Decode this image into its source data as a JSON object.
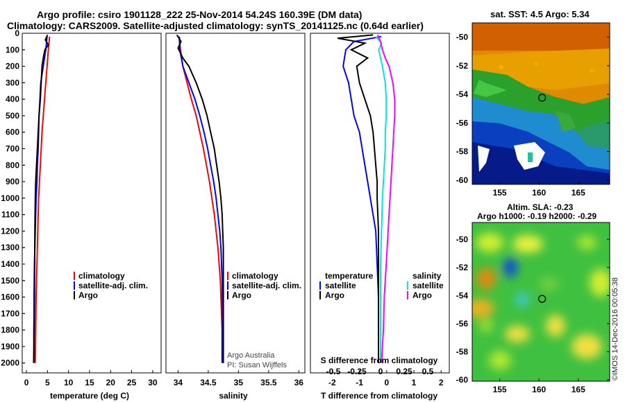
{
  "title_line1": "Argo profile: csiro 1901128_222 25-Nov-2014 54.24S 160.39E (DM data)",
  "title_line2": "Climatology: CARS2009. Satellite-adjusted climatology: synTS_20141125.nc (0.64d earlier)",
  "map_sst_title": "sat. SST: 4.5 Argo: 5.34",
  "map_sla_title1": "Altim. SLA: -0.23",
  "map_sla_title2": "Argo h1000: -0.19 h2000: -0.29",
  "credit": "Argo Australia",
  "pi": "PI: Susan Wijffels",
  "watermark": "©IMOS 14-Dec-2016 00:05:38",
  "colors": {
    "climatology": "#ff0000",
    "satellite": "#0000ff",
    "argo": "#000000",
    "s_satellite": "#00e5e5",
    "s_argo": "#ff00ff"
  },
  "chart_data": [
    {
      "type": "line",
      "xlabel": "temperature (deg C)",
      "ylabel": "",
      "xlim": [
        -1,
        32
      ],
      "ylim": [
        2060,
        0
      ],
      "x_ticks": [
        0,
        5,
        10,
        15,
        20,
        25,
        30
      ],
      "y_ticks": [
        0,
        100,
        200,
        300,
        400,
        500,
        600,
        700,
        800,
        900,
        1000,
        1100,
        1200,
        1300,
        1400,
        1500,
        1600,
        1700,
        1800,
        1900,
        2000
      ],
      "legend": [
        "climatology",
        "satellite-adj. clim.",
        "Argo"
      ],
      "series": [
        {
          "name": "climatology",
          "x": [
            5.5,
            5.2,
            4.9,
            4.6,
            4.3,
            4.0,
            3.7,
            3.5,
            3.3,
            3.1,
            2.9,
            2.7,
            2.6,
            2.5,
            2.4,
            2.3,
            2.25,
            2.2,
            2.15,
            2.1
          ],
          "y": [
            20,
            100,
            200,
            300,
            400,
            500,
            600,
            700,
            800,
            900,
            1000,
            1200,
            1300,
            1400,
            1500,
            1600,
            1700,
            1800,
            1900,
            2000
          ]
        },
        {
          "name": "satellite-adj. clim.",
          "x": [
            4.9,
            4.6,
            4.0,
            3.4,
            3.2,
            3.0,
            2.9,
            2.8,
            2.6,
            2.5,
            2.3,
            2.1,
            2.0,
            1.9,
            1.85,
            1.8,
            1.8,
            1.75,
            1.75,
            1.7
          ],
          "y": [
            20,
            100,
            200,
            300,
            400,
            500,
            600,
            700,
            800,
            900,
            1000,
            1200,
            1300,
            1400,
            1500,
            1600,
            1700,
            1800,
            1900,
            2000
          ]
        },
        {
          "name": "Argo",
          "x": [
            5.0,
            4.5,
            5.2,
            4.4,
            4.0,
            3.7,
            3.5,
            3.3,
            3.0,
            2.8,
            2.6,
            2.4,
            2.2,
            2.1,
            2.0,
            1.95,
            1.9,
            1.85,
            1.8,
            1.8,
            1.75
          ],
          "y": [
            10,
            40,
            70,
            100,
            150,
            200,
            300,
            400,
            500,
            600,
            700,
            800,
            900,
            1000,
            1200,
            1400,
            1600,
            1800,
            1900,
            1950,
            2000
          ]
        }
      ]
    },
    {
      "type": "line",
      "xlabel": "salinity",
      "ylabel": "",
      "xlim": [
        33.8,
        36.1
      ],
      "ylim": [
        2060,
        0
      ],
      "x_ticks": [
        34,
        34.5,
        35,
        35.5,
        36
      ],
      "x_tick_labels": [
        "34",
        "34.5",
        "35",
        "35.5",
        "36"
      ],
      "legend": [
        "climatology",
        "satellite-adj. clim.",
        "Argo"
      ],
      "series": [
        {
          "name": "climatology",
          "x": [
            34.02,
            34.04,
            34.08,
            34.15,
            34.22,
            34.3,
            34.36,
            34.42,
            34.47,
            34.52,
            34.56,
            34.6,
            34.63,
            34.66,
            34.68,
            34.7,
            34.71,
            34.72,
            34.73,
            34.73
          ],
          "y": [
            20,
            100,
            200,
            300,
            400,
            500,
            600,
            700,
            800,
            900,
            1000,
            1100,
            1200,
            1300,
            1400,
            1500,
            1600,
            1700,
            1800,
            2000
          ]
        },
        {
          "name": "satellite-adj. clim.",
          "x": [
            34.02,
            34.03,
            34.08,
            34.18,
            34.28,
            34.36,
            34.43,
            34.49,
            34.54,
            34.59,
            34.63,
            34.66,
            34.69,
            34.71,
            34.72,
            34.73,
            34.73,
            34.73,
            34.73
          ],
          "y": [
            20,
            100,
            200,
            300,
            400,
            500,
            600,
            700,
            800,
            900,
            1000,
            1100,
            1200,
            1300,
            1400,
            1500,
            1600,
            1800,
            2000
          ]
        },
        {
          "name": "Argo",
          "x": [
            33.98,
            34.05,
            34.0,
            34.08,
            34.18,
            34.3,
            34.4,
            34.48,
            34.54,
            34.6,
            34.64,
            34.68,
            34.71,
            34.73,
            34.74,
            34.75,
            34.75,
            34.75,
            34.75
          ],
          "y": [
            10,
            50,
            90,
            150,
            200,
            300,
            400,
            500,
            600,
            700,
            800,
            900,
            1000,
            1100,
            1200,
            1300,
            1500,
            1800,
            2000
          ]
        }
      ]
    },
    {
      "type": "line",
      "xlabel": "T difference from climatology",
      "top_label": "S difference from climatology",
      "xlim": [
        -2.8,
        2.3
      ],
      "ylim": [
        2060,
        0
      ],
      "x_ticks": [
        -2,
        -1,
        0,
        1,
        2
      ],
      "s_ticks": [
        -0.5,
        -0.25,
        0,
        0.25,
        0.5
      ],
      "s_tick_labels": [
        "-0.5",
        "-0.25",
        "0",
        "0.25",
        "0.5"
      ],
      "legend_temperature": [
        "temperature",
        "satellite",
        "Argo"
      ],
      "legend_salinity": [
        "salinity",
        "satellite",
        "Argo"
      ],
      "series": [
        {
          "name": "satellite",
          "x": [
            -0.2,
            -1.2,
            -1.5,
            -1.6,
            -1.4,
            -1.3,
            -1.2,
            -1.0,
            -0.9,
            -0.8,
            -0.7,
            -0.6,
            -0.5,
            -0.4,
            -0.35,
            -0.3,
            -0.3,
            -0.3
          ],
          "y": [
            20,
            50,
            100,
            200,
            300,
            400,
            500,
            600,
            700,
            800,
            900,
            1000,
            1100,
            1200,
            1400,
            1600,
            1800,
            2000
          ]
        },
        {
          "name": "Argo",
          "x": [
            -0.5,
            -1.8,
            -0.8,
            -1.3,
            -0.7,
            -1.1,
            -1.0,
            -0.8,
            -0.6,
            -0.5,
            -0.45,
            -0.4,
            -0.35,
            -0.35,
            -0.3,
            -0.3,
            -0.3,
            -0.3
          ],
          "y": [
            10,
            30,
            60,
            100,
            150,
            200,
            300,
            400,
            500,
            600,
            700,
            800,
            900,
            1000,
            1200,
            1500,
            1800,
            2000
          ]
        },
        {
          "name": "satellite",
          "x": [
            -0.05,
            0.01,
            -0.02,
            0.02,
            0.05,
            0.06,
            0.06,
            0.05,
            0.05,
            0.04,
            0.03,
            0.02,
            0.01,
            0.0,
            0.0,
            0.0
          ],
          "y": [
            20,
            60,
            100,
            200,
            300,
            400,
            500,
            600,
            700,
            800,
            900,
            1000,
            1200,
            1400,
            1700,
            2000
          ]
        },
        {
          "name": "Argo",
          "x": [
            -0.03,
            0.0,
            0.02,
            0.05,
            0.09,
            0.13,
            0.15,
            0.15,
            0.14,
            0.13,
            0.12,
            0.11,
            0.1,
            0.09,
            0.08,
            0.06,
            0.04,
            0.03,
            0.02,
            0.01
          ],
          "y": [
            10,
            50,
            100,
            150,
            200,
            300,
            400,
            500,
            600,
            700,
            800,
            900,
            1000,
            1100,
            1200,
            1400,
            1600,
            1800,
            1900,
            2000
          ]
        }
      ]
    },
    {
      "type": "heatmap",
      "title": "sat. SST: 4.5 Argo: 5.34",
      "xlim": [
        151.5,
        169
      ],
      "ylim": [
        -60.3,
        -49
      ],
      "x_ticks": [
        155,
        160,
        165
      ],
      "y_ticks": [
        -50,
        -52,
        -54,
        -56,
        -58,
        -60
      ],
      "argo_position": [
        160.39,
        -54.24
      ]
    },
    {
      "type": "heatmap",
      "title": "Altim. SLA: -0.23",
      "subtitle": "Argo h1000: -0.19 h2000: -0.29",
      "xlim": [
        151.5,
        169
      ],
      "ylim": [
        -60.1,
        -48.8
      ],
      "x_ticks": [
        155,
        160,
        165
      ],
      "y_ticks": [
        -50,
        -52,
        -54,
        -56,
        -58,
        -60
      ],
      "argo_position": [
        160.39,
        -54.24
      ]
    }
  ]
}
